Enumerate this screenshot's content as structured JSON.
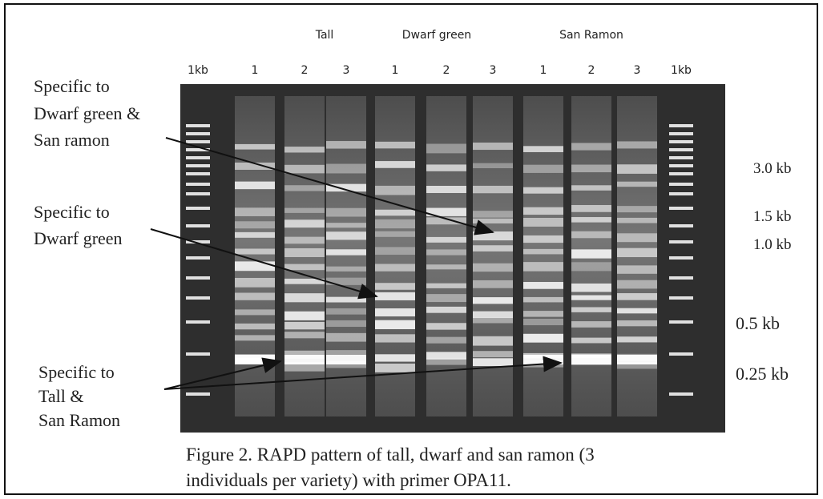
{
  "figure": {
    "groups": [
      "Tall",
      "Dwarf green",
      "San Ramon"
    ],
    "lanes": [
      "1kb",
      "1",
      "2",
      "3",
      "1",
      "2",
      "3",
      "1",
      "2",
      "3",
      "1kb"
    ],
    "sizes": [
      "3.0 kb",
      "1.5 kb",
      "1.0 kb",
      "0.5 kb",
      "0.25 kb"
    ],
    "annotations": [
      [
        "Specific to",
        "Dwarf green &",
        "San ramon"
      ],
      [
        "Specific to",
        "Dwarf  green"
      ],
      [
        "Specific to",
        "Tall &",
        "San Ramon"
      ]
    ],
    "caption": [
      "Figure 2.  RAPD pattern of tall, dwarf and san ramon (3",
      "individuals per variety) with primer OPA11."
    ]
  }
}
